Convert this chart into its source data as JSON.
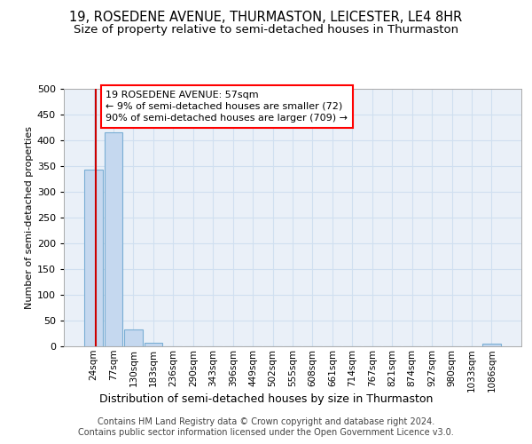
{
  "title": "19, ROSEDENE AVENUE, THURMASTON, LEICESTER, LE4 8HR",
  "subtitle": "Size of property relative to semi-detached houses in Thurmaston",
  "xlabel_bottom": "Distribution of semi-detached houses by size in Thurmaston",
  "ylabel": "Number of semi-detached properties",
  "footer": "Contains HM Land Registry data © Crown copyright and database right 2024.\nContains public sector information licensed under the Open Government Licence v3.0.",
  "bin_labels": [
    "24sqm",
    "77sqm",
    "130sqm",
    "183sqm",
    "236sqm",
    "290sqm",
    "343sqm",
    "396sqm",
    "449sqm",
    "502sqm",
    "555sqm",
    "608sqm",
    "661sqm",
    "714sqm",
    "767sqm",
    "821sqm",
    "874sqm",
    "927sqm",
    "980sqm",
    "1033sqm",
    "1086sqm"
  ],
  "bar_values": [
    343,
    416,
    32,
    7,
    0,
    0,
    0,
    0,
    0,
    0,
    0,
    0,
    0,
    0,
    0,
    0,
    0,
    0,
    0,
    0,
    6
  ],
  "bar_color": "#c5d8ef",
  "bar_edgecolor": "#7aaed4",
  "bar_linewidth": 0.8,
  "grid_color": "#d0dff0",
  "ylim": [
    0,
    500
  ],
  "yticks": [
    0,
    50,
    100,
    150,
    200,
    250,
    300,
    350,
    400,
    450,
    500
  ],
  "annotation_text": "19 ROSEDENE AVENUE: 57sqm\n← 9% of semi-detached houses are smaller (72)\n90% of semi-detached houses are larger (709) →",
  "annotation_box_color": "white",
  "annotation_border_color": "red",
  "red_line_color": "#cc0000",
  "title_fontsize": 10.5,
  "subtitle_fontsize": 9.5,
  "axis_fontsize": 8,
  "annotation_fontsize": 8,
  "xlabel_fontsize": 9,
  "footer_fontsize": 7,
  "bg_color": "#ffffff",
  "plot_bg_color": "#eaf0f8"
}
